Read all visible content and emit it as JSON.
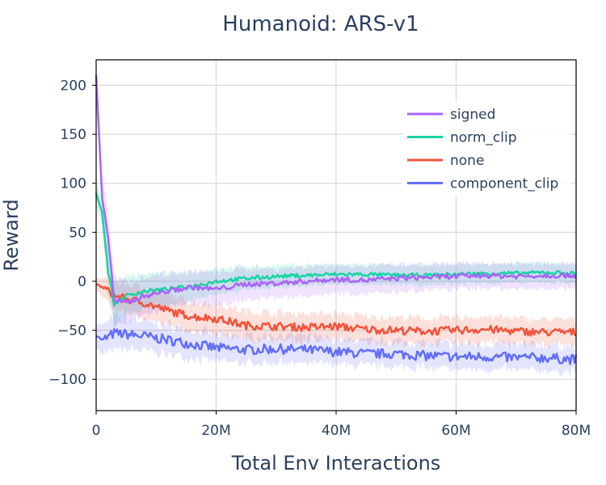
{
  "chart_data": {
    "type": "line",
    "title": "Humanoid: ARS-v1",
    "xlabel": "Total Env Interactions",
    "ylabel": "Reward",
    "xlim": [
      0,
      80000000
    ],
    "ylim": [
      -132,
      226
    ],
    "x_ticks": [
      0,
      20000000,
      40000000,
      60000000,
      80000000
    ],
    "x_tick_labels": [
      "0",
      "20M",
      "40M",
      "60M",
      "80M"
    ],
    "y_ticks": [
      200,
      150,
      100,
      50,
      0,
      -50,
      -100
    ],
    "y_tick_labels": [
      "200",
      "150",
      "100",
      "50",
      "0",
      "−50",
      "−100"
    ],
    "grid": true,
    "legend_position": "top-right",
    "series": [
      {
        "name": "signed",
        "color": "#ab63fa",
        "x_millions": [
          0,
          1,
          2,
          3,
          5,
          8,
          12,
          16,
          20,
          25,
          30,
          35,
          40,
          45,
          50,
          55,
          60,
          65,
          70,
          75,
          80
        ],
        "values": [
          210,
          85,
          45,
          -20,
          -22,
          -15,
          -10,
          -6,
          -8,
          -3,
          -2,
          0,
          2,
          1,
          3,
          4,
          5,
          6,
          5,
          6,
          6
        ],
        "band": [
          12,
          22,
          24,
          24,
          22,
          20,
          18,
          17,
          17,
          16,
          15,
          15,
          14,
          14,
          14,
          13,
          13,
          13,
          13,
          13,
          13
        ],
        "noise": 2.5
      },
      {
        "name": "norm_clip",
        "color": "#19d3a3",
        "x_millions": [
          0,
          1,
          2,
          3,
          5,
          8,
          12,
          16,
          20,
          25,
          30,
          35,
          40,
          45,
          50,
          55,
          60,
          65,
          70,
          75,
          80
        ],
        "values": [
          90,
          70,
          10,
          -23,
          -15,
          -10,
          -8,
          -5,
          0,
          3,
          5,
          6,
          7,
          7,
          6,
          6,
          7,
          8,
          8,
          9,
          8
        ],
        "band": [
          10,
          18,
          20,
          22,
          20,
          18,
          16,
          14,
          13,
          12,
          11,
          11,
          10,
          10,
          10,
          10,
          10,
          10,
          10,
          10,
          10
        ],
        "noise": 2
      },
      {
        "name": "none",
        "color": "#ef553b",
        "x_millions": [
          0,
          1,
          2,
          3,
          5,
          8,
          12,
          16,
          20,
          25,
          30,
          35,
          40,
          45,
          50,
          55,
          60,
          65,
          70,
          75,
          80
        ],
        "values": [
          -3,
          -6,
          -10,
          -15,
          -18,
          -22,
          -30,
          -36,
          -38,
          -45,
          -46,
          -47,
          -46,
          -49,
          -50,
          -51,
          -50,
          -49,
          -51,
          -52,
          -52
        ],
        "band": [
          6,
          10,
          12,
          14,
          15,
          15,
          15,
          15,
          15,
          14,
          14,
          14,
          13,
          13,
          13,
          13,
          13,
          13,
          13,
          13,
          13
        ],
        "noise": 4
      },
      {
        "name": "component_clip",
        "color": "#636efa",
        "x_millions": [
          0,
          1,
          2,
          3,
          5,
          8,
          12,
          16,
          20,
          25,
          30,
          35,
          40,
          45,
          50,
          55,
          60,
          65,
          70,
          75,
          80
        ],
        "values": [
          -55,
          -60,
          -57,
          -53,
          -54,
          -56,
          -60,
          -64,
          -68,
          -70,
          -69,
          -70,
          -72,
          -74,
          -74,
          -76,
          -77,
          -77,
          -78,
          -78,
          -80
        ],
        "band": [
          12,
          15,
          16,
          17,
          16,
          15,
          15,
          14,
          14,
          14,
          14,
          14,
          13,
          13,
          13,
          13,
          13,
          13,
          13,
          13,
          13
        ],
        "noise": 5
      }
    ]
  }
}
